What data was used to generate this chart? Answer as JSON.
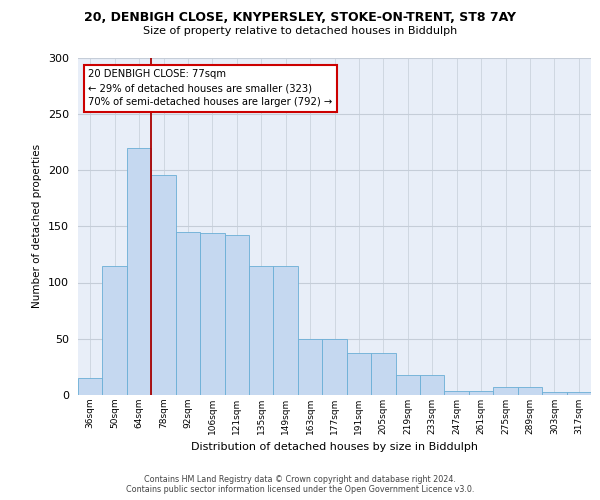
{
  "title1": "20, DENBIGH CLOSE, KNYPERSLEY, STOKE-ON-TRENT, ST8 7AY",
  "title2": "Size of property relative to detached houses in Biddulph",
  "xlabel": "Distribution of detached houses by size in Biddulph",
  "ylabel": "Number of detached properties",
  "categories": [
    "36sqm",
    "50sqm",
    "64sqm",
    "78sqm",
    "92sqm",
    "106sqm",
    "121sqm",
    "135sqm",
    "149sqm",
    "163sqm",
    "177sqm",
    "191sqm",
    "205sqm",
    "219sqm",
    "233sqm",
    "247sqm",
    "261sqm",
    "275sqm",
    "289sqm",
    "303sqm",
    "317sqm"
  ],
  "bar_heights": [
    15,
    115,
    220,
    196,
    145,
    144,
    142,
    115,
    115,
    50,
    50,
    37,
    37,
    18,
    18,
    4,
    4,
    7,
    7,
    3,
    3
  ],
  "bar_color": "#c5d8f0",
  "bar_edgecolor": "#6aaed6",
  "vline_index": 2.5,
  "vline_color": "#aa0000",
  "annotation_line1": "20 DENBIGH CLOSE: 77sqm",
  "annotation_line2": "← 29% of detached houses are smaller (323)",
  "annotation_line3": "70% of semi-detached houses are larger (792) →",
  "footer_line1": "Contains HM Land Registry data © Crown copyright and database right 2024.",
  "footer_line2": "Contains public sector information licensed under the Open Government Licence v3.0.",
  "ylim": [
    0,
    300
  ],
  "yticks": [
    0,
    50,
    100,
    150,
    200,
    250,
    300
  ],
  "background_color": "#ffffff",
  "plot_bg_color": "#e8eef8",
  "grid_color": "#c5cdd8"
}
